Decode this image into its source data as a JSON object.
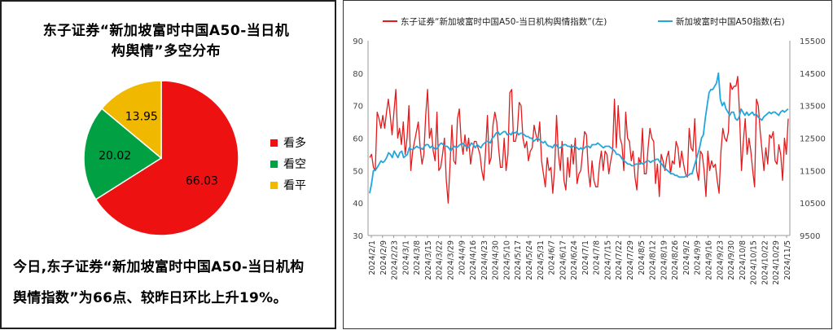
{
  "colors": {
    "look_up": "#ee1111",
    "look_down": "#00a043",
    "look_flat": "#f1b800",
    "sentiment_line": "#e41a1c",
    "index_line": "#21a7dd"
  },
  "pie": {
    "title_line1": "东子证券“新加坡富时中国A50-当日机",
    "title_line2": "构舆情”多空分布",
    "commentary_line1": "今日,东子证券“新加坡富时中国A50-当日机构",
    "commentary_line2": "舆情指数”为66点、较昨日环比上升19%。"
  },
  "chart_data": [
    {
      "type": "pie",
      "title": "东子证券“新加坡富时中国A50-当日机构舆情”多空分布",
      "slices": [
        {
          "label": "看多",
          "value": 66.03,
          "value_text": "66.03",
          "color": "#ee1111"
        },
        {
          "label": "看空",
          "value": 20.02,
          "value_text": "20.02",
          "color": "#00a043"
        },
        {
          "label": "看平",
          "value": 13.95,
          "value_text": "13.95",
          "color": "#f1b800"
        }
      ],
      "legend_position": "right"
    },
    {
      "type": "line",
      "legend_position": "top",
      "grid": false,
      "legend": [
        "东子证券“新加坡富时中国A50-当日机构舆情指数”(左)",
        "新加坡富时中国A50指数(右)"
      ],
      "x_date_range": [
        "2024/2/1",
        "2024/11/5"
      ],
      "x_tick_labels": [
        "2024/2/1",
        "2024/2/9",
        "2024/2/23",
        "2024/3/1",
        "2024/3/8",
        "2024/3/15",
        "2024/3/22",
        "2024/3/29",
        "2024/4/9",
        "2024/4/16",
        "2024/4/23",
        "2024/4/30",
        "2024/5/10",
        "2024/5/17",
        "2024/5/24",
        "2024/5/31",
        "2024/6/7",
        "2024/6/17",
        "2024/6/24",
        "2024/7/1",
        "2024/7/8",
        "2024/7/15",
        "2024/7/22",
        "2024/7/29",
        "2024/8/5",
        "2024/8/12",
        "2024/8/19",
        "2024/8/26",
        "2024/9/2",
        "2024/9/9",
        "2024/9/16",
        "2024/9/23",
        "2024/9/30",
        "2024/10/8",
        "2024/10/15",
        "2024/10/22",
        "2024/10/29",
        "2024/11/5"
      ],
      "y_left": {
        "ticks": [
          30,
          40,
          50,
          60,
          70,
          80,
          90
        ],
        "ylim": [
          30,
          90
        ]
      },
      "y_right": {
        "ticks": [
          9500,
          10500,
          11500,
          12500,
          13500,
          14500,
          15500
        ],
        "ylim": [
          9500,
          15500
        ]
      },
      "series": [
        {
          "name": "东子证券“新加坡富时中国A50-当日机构舆情指数”(左)",
          "axis": "left",
          "values": [
            54,
            55,
            51,
            50,
            68,
            66,
            63,
            67,
            63,
            68,
            72,
            67,
            61,
            68,
            75,
            60,
            63,
            58,
            65,
            55,
            60,
            70,
            50,
            56,
            59,
            62,
            65,
            57,
            52,
            55,
            67,
            75,
            60,
            63,
            56,
            53,
            68,
            50,
            51,
            55,
            60,
            47,
            40,
            52,
            64,
            53,
            52,
            66,
            69,
            59,
            55,
            61,
            56,
            60,
            52,
            56,
            59,
            59,
            57,
            55,
            50,
            47,
            56,
            67,
            52,
            54,
            64,
            68,
            65,
            57,
            51,
            51,
            60,
            50,
            55,
            74,
            75,
            59,
            59,
            62,
            71,
            70,
            60,
            57,
            59,
            53,
            56,
            57,
            64,
            61,
            59,
            65,
            53,
            49,
            45,
            54,
            50,
            51,
            43,
            51,
            67,
            55,
            50,
            59,
            47,
            44,
            54,
            48,
            58,
            52,
            60,
            46,
            49,
            50,
            56,
            62,
            61,
            50,
            45,
            53,
            47,
            45,
            45,
            52,
            56,
            50,
            56,
            55,
            49,
            53,
            56,
            72,
            57,
            70,
            60,
            58,
            50,
            68,
            60,
            59,
            53,
            56,
            48,
            44,
            54,
            52,
            63,
            49,
            49,
            57,
            63,
            60,
            59,
            46,
            52,
            42,
            55,
            53,
            50,
            54,
            56,
            49,
            53,
            52,
            59,
            57,
            51,
            56,
            52,
            49,
            48,
            63,
            57,
            56,
            66,
            50,
            47,
            56,
            55,
            50,
            42,
            56,
            50,
            53,
            51,
            52,
            47,
            43,
            56,
            63,
            60,
            59,
            62,
            77,
            75,
            76,
            76,
            79,
            67,
            50,
            59,
            66,
            55,
            60,
            56,
            50,
            45,
            72,
            70,
            62,
            56,
            50,
            57,
            52,
            61,
            60,
            62,
            53,
            52,
            58,
            55,
            47,
            60,
            55,
            66
          ]
        },
        {
          "name": "新加坡富时中国A50指数(右)",
          "axis": "right",
          "values": [
            10800,
            11100,
            11500,
            11500,
            11600,
            11700,
            11800,
            11750,
            11800,
            11900,
            12050,
            12000,
            11900,
            12100,
            12000,
            11900,
            12050,
            12100,
            11900,
            11950,
            12000,
            12200,
            12150,
            12150,
            12200,
            12250,
            12200,
            12200,
            12150,
            12250,
            12300,
            12300,
            12200,
            12250,
            12200,
            12150,
            12200,
            12300,
            12350,
            12300,
            12250,
            12250,
            12200,
            12100,
            12200,
            12250,
            12200,
            12250,
            12300,
            12350,
            12300,
            12250,
            12200,
            12250,
            12350,
            12300,
            12200,
            12300,
            12250,
            12200,
            12300,
            12350,
            12400,
            12400,
            12350,
            12500,
            12550,
            12650,
            12700,
            12600,
            12650,
            12700,
            12700,
            12600,
            12650,
            12600,
            12700,
            12650,
            12700,
            12600,
            12650,
            12650,
            12600,
            12550,
            12550,
            12500,
            12500,
            12400,
            12450,
            12500,
            12450,
            12400,
            12350,
            12400,
            12300,
            12250,
            12250,
            12200,
            12300,
            12300,
            12200,
            12200,
            12250,
            12300,
            12300,
            12250,
            12250,
            12200,
            12250,
            12250,
            12200,
            12150,
            12200,
            12150,
            12200,
            12250,
            12250,
            12200,
            12300,
            12300,
            12300,
            12350,
            12300,
            12250,
            12200,
            12250,
            12250,
            12250,
            12200,
            12150,
            12100,
            12000,
            12000,
            11950,
            11850,
            11800,
            11750,
            11700,
            11700,
            11650,
            11650,
            11700,
            11700,
            11700,
            11750,
            11700,
            11750,
            11800,
            11800,
            11750,
            11800,
            11800,
            11850,
            11850,
            11750,
            11700,
            11600,
            11550,
            11500,
            11450,
            11400,
            11400,
            11350,
            11350,
            11300,
            11300,
            11300,
            11300,
            11350,
            11350,
            11400,
            11400,
            11600,
            11800,
            12000,
            12200,
            12500,
            12600,
            13100,
            13500,
            13900,
            14000,
            14000,
            14100,
            14200,
            14500,
            13700,
            13500,
            13600,
            13400,
            13300,
            13200,
            13300,
            13300,
            13100,
            13050,
            13150,
            13400,
            13300,
            13200,
            13300,
            13200,
            13250,
            13300,
            13200,
            13250,
            13150,
            13100,
            13050,
            13150,
            13200,
            13250,
            13300,
            13250,
            13300,
            13300,
            13250,
            13200,
            13300,
            13350,
            13300,
            13350,
            13400
          ]
        }
      ]
    }
  ]
}
